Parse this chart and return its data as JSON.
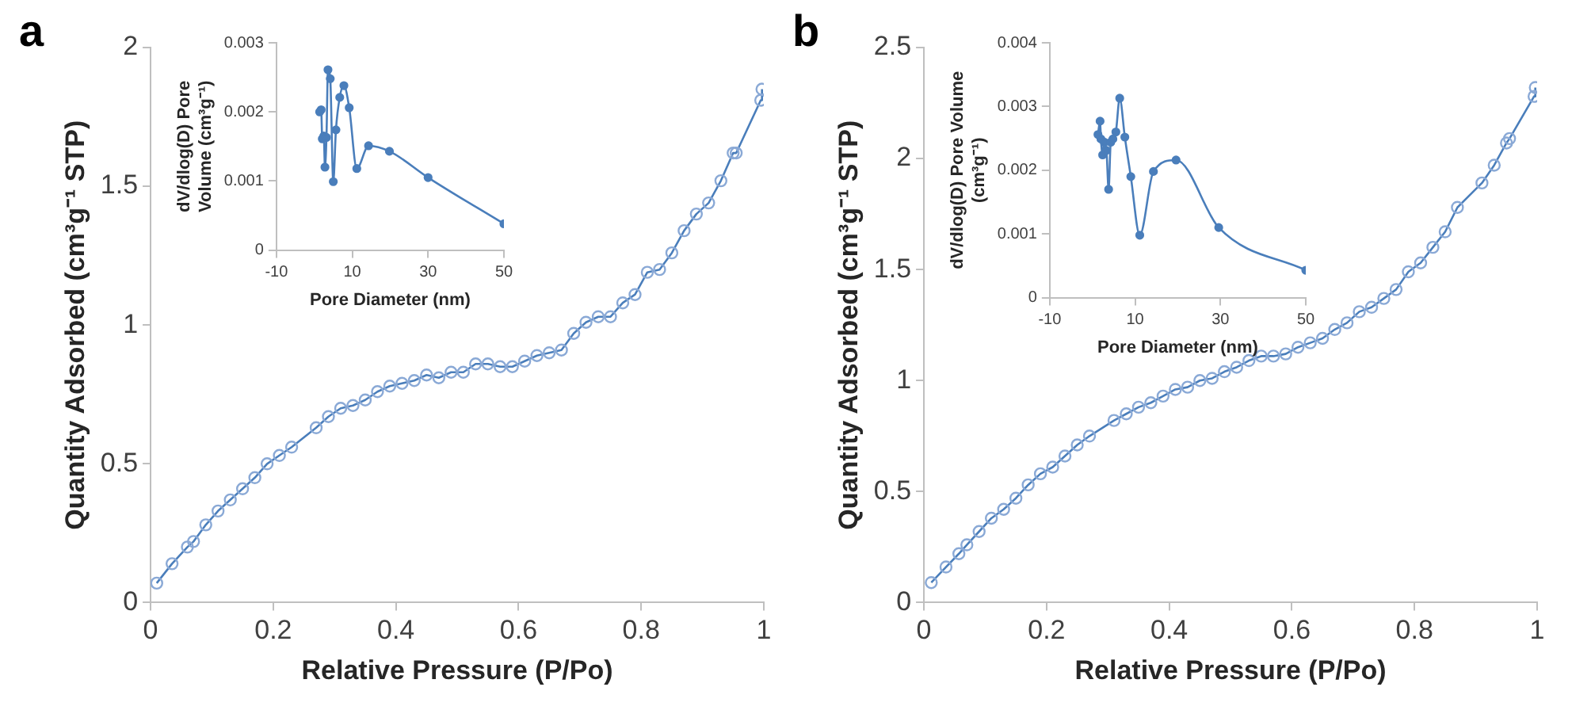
{
  "chart_data": [
    {
      "type": "line",
      "title": "a",
      "xlabel": "Relative Pressure (P/Po)",
      "ylabel": "Quantity Adsorbed (cm³g⁻¹ STP)",
      "xlim": [
        0,
        1
      ],
      "xticks": [
        0,
        0.2,
        0.4,
        0.6,
        0.8,
        1
      ],
      "ylim": [
        0,
        2
      ],
      "yticks": [
        0,
        0.5,
        1,
        1.5,
        2
      ],
      "grid": false,
      "legend": false,
      "marker": "circle",
      "line_style": "solid",
      "series": [
        {
          "color": "#4a7ebb",
          "x": [
            0.01,
            0.035,
            0.06,
            0.07,
            0.09,
            0.11,
            0.13,
            0.15,
            0.17,
            0.19,
            0.21,
            0.23,
            0.27,
            0.29,
            0.31,
            0.33,
            0.35,
            0.37,
            0.39,
            0.41,
            0.43,
            0.45,
            0.47,
            0.49,
            0.51,
            0.53,
            0.55,
            0.57,
            0.59,
            0.61,
            0.63,
            0.65,
            0.67,
            0.69,
            0.71,
            0.73,
            0.75,
            0.77,
            0.79,
            0.81,
            0.83,
            0.85,
            0.87,
            0.89,
            0.91,
            0.93,
            0.95,
            0.955,
            0.995,
            0.997
          ],
          "values": [
            0.07,
            0.14,
            0.2,
            0.22,
            0.28,
            0.33,
            0.37,
            0.41,
            0.45,
            0.5,
            0.53,
            0.56,
            0.63,
            0.67,
            0.7,
            0.71,
            0.73,
            0.76,
            0.78,
            0.79,
            0.8,
            0.82,
            0.81,
            0.83,
            0.83,
            0.86,
            0.86,
            0.85,
            0.85,
            0.87,
            0.89,
            0.9,
            0.91,
            0.97,
            1.01,
            1.03,
            1.03,
            1.08,
            1.11,
            1.19,
            1.2,
            1.26,
            1.34,
            1.4,
            1.44,
            1.52,
            1.62,
            1.62,
            1.81,
            1.85
          ]
        }
      ]
    },
    {
      "type": "line",
      "xlabel": "Pore Diameter (nm)",
      "ylabel": "dV/dlog(D) Pore Volume (cm³g⁻¹)",
      "xlim": [
        -10,
        50
      ],
      "xticks": [
        -10,
        10,
        30,
        50
      ],
      "ylim": [
        0,
        0.003
      ],
      "yticks": [
        0,
        0.001,
        0.002,
        0.003
      ],
      "grid": false,
      "legend": false,
      "marker": "circle",
      "line_style": "solid",
      "series": [
        {
          "color": "#4a7ebb",
          "x": [
            1.4,
            1.8,
            2.1,
            2.5,
            2.8,
            3.2,
            3.6,
            4.2,
            5.0,
            5.7,
            6.7,
            7.8,
            9.2,
            11.2,
            14.3,
            19.8,
            30,
            50
          ],
          "values": [
            0.002,
            0.00203,
            0.00161,
            0.00165,
            0.0012,
            0.00163,
            0.00261,
            0.00248,
            0.00099,
            0.00174,
            0.00221,
            0.00238,
            0.00206,
            0.00118,
            0.00151,
            0.00143,
            0.00105,
            0.00038
          ]
        }
      ]
    },
    {
      "type": "line",
      "title": "b",
      "xlabel": "Relative Pressure (P/Po)",
      "ylabel": "Quantity Adsorbed (cm³g⁻¹ STP)",
      "xlim": [
        0,
        1
      ],
      "xticks": [
        0,
        0.2,
        0.4,
        0.6,
        0.8,
        1
      ],
      "ylim": [
        0,
        2.5
      ],
      "yticks": [
        0,
        0.5,
        1,
        1.5,
        2,
        2.5
      ],
      "grid": false,
      "legend": false,
      "marker": "circle",
      "line_style": "solid",
      "series": [
        {
          "color": "#4a7ebb",
          "x": [
            0.012,
            0.036,
            0.057,
            0.07,
            0.09,
            0.11,
            0.13,
            0.15,
            0.17,
            0.19,
            0.21,
            0.23,
            0.25,
            0.27,
            0.31,
            0.33,
            0.35,
            0.37,
            0.39,
            0.41,
            0.43,
            0.45,
            0.47,
            0.49,
            0.51,
            0.53,
            0.55,
            0.57,
            0.59,
            0.61,
            0.63,
            0.65,
            0.67,
            0.69,
            0.71,
            0.73,
            0.75,
            0.77,
            0.79,
            0.81,
            0.83,
            0.85,
            0.87,
            0.91,
            0.93,
            0.95,
            0.955,
            0.995,
            0.997
          ],
          "values": [
            0.09,
            0.16,
            0.22,
            0.26,
            0.32,
            0.38,
            0.42,
            0.47,
            0.53,
            0.58,
            0.61,
            0.66,
            0.71,
            0.75,
            0.82,
            0.85,
            0.88,
            0.9,
            0.93,
            0.96,
            0.97,
            1.0,
            1.01,
            1.04,
            1.06,
            1.09,
            1.11,
            1.11,
            1.12,
            1.15,
            1.17,
            1.19,
            1.23,
            1.26,
            1.31,
            1.33,
            1.37,
            1.41,
            1.49,
            1.53,
            1.6,
            1.67,
            1.78,
            1.89,
            1.97,
            2.07,
            2.09,
            2.28,
            2.32
          ]
        }
      ]
    },
    {
      "type": "line",
      "xlabel": "Pore Diameter (nm)",
      "ylabel": "dV/dlog(D) Pore Volume (cm³g⁻¹)",
      "xlim": [
        -10,
        50
      ],
      "xticks": [
        -10,
        10,
        30,
        50
      ],
      "ylim": [
        0,
        0.004
      ],
      "yticks": [
        0,
        0.001,
        0.002,
        0.003,
        0.004
      ],
      "grid": false,
      "legend": false,
      "marker": "circle",
      "line_style": "solid",
      "series": [
        {
          "color": "#4a7ebb",
          "x": [
            1.3,
            1.8,
            2.0,
            2.4,
            2.8,
            3.3,
            3.8,
            4.3,
            4.8,
            5.5,
            6.4,
            7.6,
            9.0,
            11.1,
            14.3,
            19.6,
            29.6,
            50
          ],
          "values": [
            0.00256,
            0.00277,
            0.00249,
            0.00224,
            0.00244,
            0.00231,
            0.0017,
            0.00244,
            0.00249,
            0.0026,
            0.00313,
            0.00252,
            0.0019,
            0.00098,
            0.00198,
            0.00216,
            0.0011,
            0.00043
          ]
        }
      ]
    }
  ]
}
